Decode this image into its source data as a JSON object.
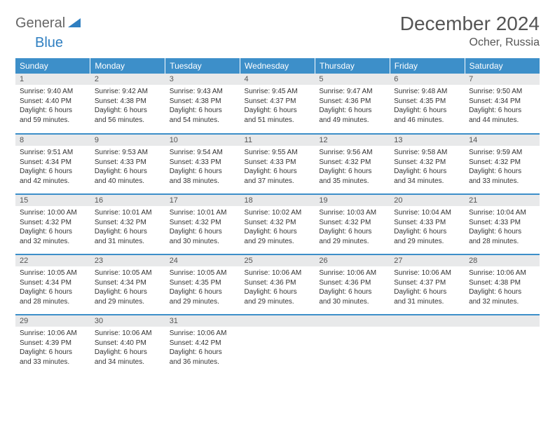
{
  "logo": {
    "general": "General",
    "blue": "Blue"
  },
  "title": "December 2024",
  "location": "Ocher, Russia",
  "colors": {
    "header_bg": "#3d8fc9",
    "header_text": "#ffffff",
    "daynum_bg": "#e8e9ea",
    "border": "#3d8fc9",
    "logo_gray": "#666666",
    "logo_blue": "#2f7fc1"
  },
  "weekdays": [
    "Sunday",
    "Monday",
    "Tuesday",
    "Wednesday",
    "Thursday",
    "Friday",
    "Saturday"
  ],
  "weeks": [
    [
      {
        "n": "1",
        "sr": "Sunrise: 9:40 AM",
        "ss": "Sunset: 4:40 PM",
        "d1": "Daylight: 6 hours",
        "d2": "and 59 minutes."
      },
      {
        "n": "2",
        "sr": "Sunrise: 9:42 AM",
        "ss": "Sunset: 4:38 PM",
        "d1": "Daylight: 6 hours",
        "d2": "and 56 minutes."
      },
      {
        "n": "3",
        "sr": "Sunrise: 9:43 AM",
        "ss": "Sunset: 4:38 PM",
        "d1": "Daylight: 6 hours",
        "d2": "and 54 minutes."
      },
      {
        "n": "4",
        "sr": "Sunrise: 9:45 AM",
        "ss": "Sunset: 4:37 PM",
        "d1": "Daylight: 6 hours",
        "d2": "and 51 minutes."
      },
      {
        "n": "5",
        "sr": "Sunrise: 9:47 AM",
        "ss": "Sunset: 4:36 PM",
        "d1": "Daylight: 6 hours",
        "d2": "and 49 minutes."
      },
      {
        "n": "6",
        "sr": "Sunrise: 9:48 AM",
        "ss": "Sunset: 4:35 PM",
        "d1": "Daylight: 6 hours",
        "d2": "and 46 minutes."
      },
      {
        "n": "7",
        "sr": "Sunrise: 9:50 AM",
        "ss": "Sunset: 4:34 PM",
        "d1": "Daylight: 6 hours",
        "d2": "and 44 minutes."
      }
    ],
    [
      {
        "n": "8",
        "sr": "Sunrise: 9:51 AM",
        "ss": "Sunset: 4:34 PM",
        "d1": "Daylight: 6 hours",
        "d2": "and 42 minutes."
      },
      {
        "n": "9",
        "sr": "Sunrise: 9:53 AM",
        "ss": "Sunset: 4:33 PM",
        "d1": "Daylight: 6 hours",
        "d2": "and 40 minutes."
      },
      {
        "n": "10",
        "sr": "Sunrise: 9:54 AM",
        "ss": "Sunset: 4:33 PM",
        "d1": "Daylight: 6 hours",
        "d2": "and 38 minutes."
      },
      {
        "n": "11",
        "sr": "Sunrise: 9:55 AM",
        "ss": "Sunset: 4:33 PM",
        "d1": "Daylight: 6 hours",
        "d2": "and 37 minutes."
      },
      {
        "n": "12",
        "sr": "Sunrise: 9:56 AM",
        "ss": "Sunset: 4:32 PM",
        "d1": "Daylight: 6 hours",
        "d2": "and 35 minutes."
      },
      {
        "n": "13",
        "sr": "Sunrise: 9:58 AM",
        "ss": "Sunset: 4:32 PM",
        "d1": "Daylight: 6 hours",
        "d2": "and 34 minutes."
      },
      {
        "n": "14",
        "sr": "Sunrise: 9:59 AM",
        "ss": "Sunset: 4:32 PM",
        "d1": "Daylight: 6 hours",
        "d2": "and 33 minutes."
      }
    ],
    [
      {
        "n": "15",
        "sr": "Sunrise: 10:00 AM",
        "ss": "Sunset: 4:32 PM",
        "d1": "Daylight: 6 hours",
        "d2": "and 32 minutes."
      },
      {
        "n": "16",
        "sr": "Sunrise: 10:01 AM",
        "ss": "Sunset: 4:32 PM",
        "d1": "Daylight: 6 hours",
        "d2": "and 31 minutes."
      },
      {
        "n": "17",
        "sr": "Sunrise: 10:01 AM",
        "ss": "Sunset: 4:32 PM",
        "d1": "Daylight: 6 hours",
        "d2": "and 30 minutes."
      },
      {
        "n": "18",
        "sr": "Sunrise: 10:02 AM",
        "ss": "Sunset: 4:32 PM",
        "d1": "Daylight: 6 hours",
        "d2": "and 29 minutes."
      },
      {
        "n": "19",
        "sr": "Sunrise: 10:03 AM",
        "ss": "Sunset: 4:32 PM",
        "d1": "Daylight: 6 hours",
        "d2": "and 29 minutes."
      },
      {
        "n": "20",
        "sr": "Sunrise: 10:04 AM",
        "ss": "Sunset: 4:33 PM",
        "d1": "Daylight: 6 hours",
        "d2": "and 29 minutes."
      },
      {
        "n": "21",
        "sr": "Sunrise: 10:04 AM",
        "ss": "Sunset: 4:33 PM",
        "d1": "Daylight: 6 hours",
        "d2": "and 28 minutes."
      }
    ],
    [
      {
        "n": "22",
        "sr": "Sunrise: 10:05 AM",
        "ss": "Sunset: 4:34 PM",
        "d1": "Daylight: 6 hours",
        "d2": "and 28 minutes."
      },
      {
        "n": "23",
        "sr": "Sunrise: 10:05 AM",
        "ss": "Sunset: 4:34 PM",
        "d1": "Daylight: 6 hours",
        "d2": "and 29 minutes."
      },
      {
        "n": "24",
        "sr": "Sunrise: 10:05 AM",
        "ss": "Sunset: 4:35 PM",
        "d1": "Daylight: 6 hours",
        "d2": "and 29 minutes."
      },
      {
        "n": "25",
        "sr": "Sunrise: 10:06 AM",
        "ss": "Sunset: 4:36 PM",
        "d1": "Daylight: 6 hours",
        "d2": "and 29 minutes."
      },
      {
        "n": "26",
        "sr": "Sunrise: 10:06 AM",
        "ss": "Sunset: 4:36 PM",
        "d1": "Daylight: 6 hours",
        "d2": "and 30 minutes."
      },
      {
        "n": "27",
        "sr": "Sunrise: 10:06 AM",
        "ss": "Sunset: 4:37 PM",
        "d1": "Daylight: 6 hours",
        "d2": "and 31 minutes."
      },
      {
        "n": "28",
        "sr": "Sunrise: 10:06 AM",
        "ss": "Sunset: 4:38 PM",
        "d1": "Daylight: 6 hours",
        "d2": "and 32 minutes."
      }
    ],
    [
      {
        "n": "29",
        "sr": "Sunrise: 10:06 AM",
        "ss": "Sunset: 4:39 PM",
        "d1": "Daylight: 6 hours",
        "d2": "and 33 minutes."
      },
      {
        "n": "30",
        "sr": "Sunrise: 10:06 AM",
        "ss": "Sunset: 4:40 PM",
        "d1": "Daylight: 6 hours",
        "d2": "and 34 minutes."
      },
      {
        "n": "31",
        "sr": "Sunrise: 10:06 AM",
        "ss": "Sunset: 4:42 PM",
        "d1": "Daylight: 6 hours",
        "d2": "and 36 minutes."
      },
      {
        "empty": true
      },
      {
        "empty": true
      },
      {
        "empty": true
      },
      {
        "empty": true
      }
    ]
  ]
}
